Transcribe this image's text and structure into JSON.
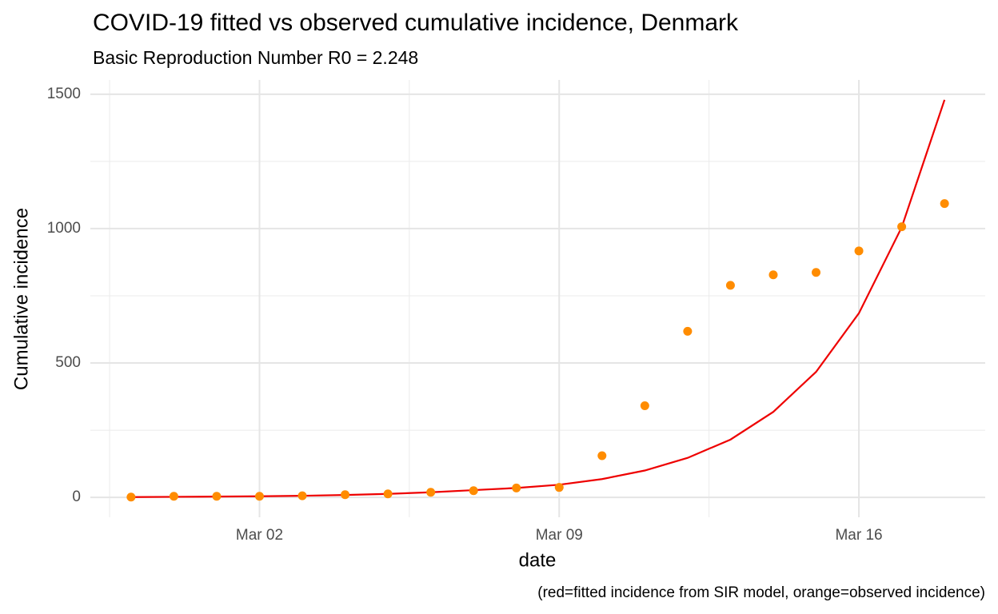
{
  "chart_data": {
    "type": "line",
    "title": "COVID-19 fitted vs observed cumulative incidence, Denmark",
    "subtitle": "Basic Reproduction Number R0 = 2.248",
    "x_label": "date",
    "y_label": "Cumulative incidence",
    "caption": "(red=fitted incidence from SIR model, orange=observed incidence)",
    "categories": [
      "Feb 28",
      "Feb 29",
      "Mar 01",
      "Mar 02",
      "Mar 03",
      "Mar 04",
      "Mar 05",
      "Mar 06",
      "Mar 07",
      "Mar 08",
      "Mar 09",
      "Mar 10",
      "Mar 11",
      "Mar 12",
      "Mar 13",
      "Mar 14",
      "Mar 15",
      "Mar 16",
      "Mar 17",
      "Mar 18"
    ],
    "xticks": [
      "Mar 02",
      "Mar 09",
      "Mar 16"
    ],
    "series": [
      {
        "color": "#ee0000",
        "style": "line",
        "values": [
          1,
          2,
          3,
          4,
          6,
          9,
          13,
          19,
          27,
          35,
          47,
          68,
          100,
          147,
          215,
          318,
          467,
          685,
          1005,
          1479
        ]
      },
      {
        "color": "#ff8c00",
        "style": "points",
        "values": [
          1,
          4,
          4,
          4,
          6,
          10,
          13,
          19,
          25,
          35,
          37,
          155,
          341,
          618,
          789,
          828,
          837,
          917,
          1007,
          1093
        ]
      }
    ],
    "ylim": [
      -74,
      1553
    ],
    "yticks": [
      0,
      500,
      1000,
      1500
    ],
    "y_minor_ticks": [
      250,
      750,
      1250
    ],
    "grid": true
  }
}
